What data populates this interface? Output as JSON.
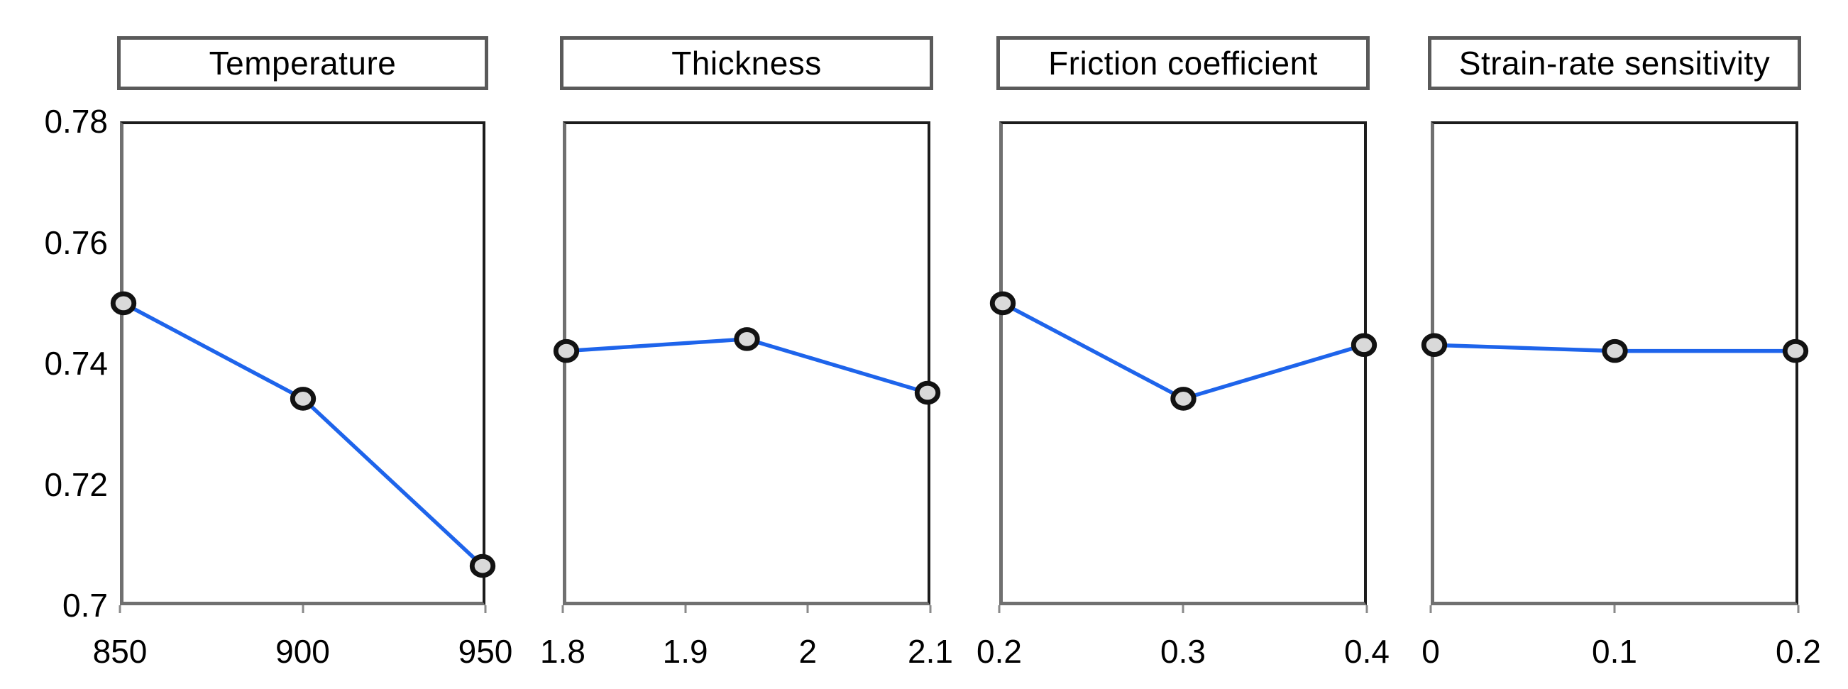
{
  "figure": {
    "background": "#ffffff",
    "line_color": "#1e64eb",
    "marker_fill": "#d9d9d9",
    "marker_stroke": "#121212",
    "frame_dark": "#1c1c1c",
    "frame_gray": "#707070",
    "title_border": "#5a5a5a"
  },
  "y_axis": {
    "min": 0.7,
    "max": 0.78,
    "tick_labels": [
      "0.78",
      "0.76",
      "0.74",
      "0.72",
      "0.7"
    ],
    "tick_values": [
      0.78,
      0.76,
      0.74,
      0.72,
      0.7
    ]
  },
  "chart_data": [
    {
      "type": "line",
      "title": "Temperature",
      "x": [
        850,
        900,
        950
      ],
      "values": [
        0.75,
        0.734,
        0.706
      ],
      "x_tick_labels": [
        "850",
        "900",
        "950"
      ],
      "x_tick_values": [
        850,
        900,
        950
      ],
      "xlim": [
        850,
        950
      ],
      "ylim": [
        0.7,
        0.78
      ],
      "grid": "off",
      "legend": "none"
    },
    {
      "type": "line",
      "title": "Thickness",
      "x": [
        1.8,
        1.95,
        2.1
      ],
      "values": [
        0.742,
        0.744,
        0.735
      ],
      "x_tick_labels": [
        "1.8",
        "1.9",
        "2",
        "2.1"
      ],
      "x_tick_values": [
        1.8,
        1.9,
        2.0,
        2.1
      ],
      "xlim": [
        1.8,
        2.1
      ],
      "ylim": [
        0.7,
        0.78
      ],
      "grid": "off",
      "legend": "none"
    },
    {
      "type": "line",
      "title": "Friction coefficient",
      "x": [
        0.2,
        0.3,
        0.4
      ],
      "values": [
        0.75,
        0.734,
        0.743
      ],
      "x_tick_labels": [
        "0.2",
        "0.3",
        "0.4"
      ],
      "x_tick_values": [
        0.2,
        0.3,
        0.4
      ],
      "xlim": [
        0.2,
        0.4
      ],
      "ylim": [
        0.7,
        0.78
      ],
      "grid": "off",
      "legend": "none"
    },
    {
      "type": "line",
      "title": "Strain-rate sensitivity",
      "x": [
        0,
        0.1,
        0.2
      ],
      "values": [
        0.743,
        0.742,
        0.742
      ],
      "x_tick_labels": [
        "0",
        "0.1",
        "0.2"
      ],
      "x_tick_values": [
        0,
        0.1,
        0.2
      ],
      "xlim": [
        0,
        0.2
      ],
      "ylim": [
        0.7,
        0.78
      ],
      "grid": "off",
      "legend": "none"
    }
  ]
}
